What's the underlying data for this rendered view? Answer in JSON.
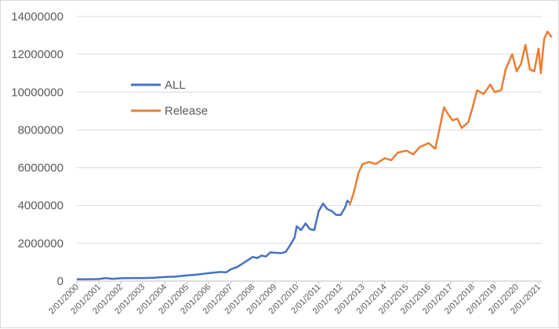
{
  "chart_data": {
    "type": "line",
    "title": "",
    "xlabel": "",
    "ylabel": "",
    "ylim": [
      0,
      14000000
    ],
    "yticks": [
      0,
      2000000,
      4000000,
      6000000,
      8000000,
      10000000,
      12000000,
      14000000
    ],
    "ytick_labels": [
      "0",
      "2000000",
      "4000000",
      "6000000",
      "8000000",
      "10000000",
      "12000000",
      "14000000"
    ],
    "xtick_labels": [
      "2/01/2000",
      "2/01/2001",
      "2/01/2002",
      "2/01/2003",
      "2/01/2004",
      "2/01/2005",
      "2/01/2006",
      "2/01/2007",
      "2/01/2008",
      "2/01/2009",
      "2/01/2010",
      "2/01/2011",
      "2/01/2012",
      "2/01/2013",
      "2/01/2014",
      "2/01/2015",
      "2/01/2016",
      "2/01/2017",
      "2/01/2018",
      "2/01/2019",
      "2/01/2020",
      "2/01/2021"
    ],
    "grid": {
      "horizontal": true,
      "vertical": false
    },
    "legend_position": "inside-left",
    "series": [
      {
        "name": "ALL",
        "color": "#4472c4",
        "x": [
          2000.0,
          2000.5,
          2001.0,
          2001.3,
          2001.6,
          2002.0,
          2002.5,
          2003.0,
          2003.5,
          2004.0,
          2004.5,
          2005.0,
          2005.5,
          2006.0,
          2006.5,
          2006.8,
          2007.0,
          2007.3,
          2007.5,
          2007.7,
          2008.0,
          2008.2,
          2008.4,
          2008.6,
          2008.8,
          2009.0,
          2009.3,
          2009.5,
          2009.7,
          2009.9,
          2010.0,
          2010.2,
          2010.4,
          2010.6,
          2010.8,
          2011.0,
          2011.2,
          2011.4,
          2011.6,
          2011.8,
          2012.0,
          2012.2,
          2012.3,
          2012.4
        ],
        "values": [
          100000,
          100000,
          110000,
          160000,
          120000,
          150000,
          160000,
          160000,
          180000,
          220000,
          240000,
          300000,
          350000,
          420000,
          480000,
          470000,
          620000,
          750000,
          900000,
          1050000,
          1280000,
          1220000,
          1350000,
          1300000,
          1520000,
          1500000,
          1480000,
          1550000,
          1900000,
          2300000,
          2900000,
          2700000,
          3050000,
          2750000,
          2700000,
          3700000,
          4100000,
          3800000,
          3700000,
          3500000,
          3500000,
          3900000,
          4250000,
          4150000
        ]
      },
      {
        "name": "Release",
        "color": "#ed7d31",
        "x": [
          2012.4,
          2012.6,
          2012.8,
          2013.0,
          2013.3,
          2013.6,
          2014.0,
          2014.3,
          2014.6,
          2015.0,
          2015.3,
          2015.6,
          2016.0,
          2016.3,
          2016.5,
          2016.7,
          2016.9,
          2017.1,
          2017.3,
          2017.5,
          2017.8,
          2018.0,
          2018.2,
          2018.5,
          2018.8,
          2019.0,
          2019.3,
          2019.5,
          2019.8,
          2020.0,
          2020.2,
          2020.4,
          2020.6,
          2020.8,
          2021.0,
          2021.1,
          2021.25,
          2021.4,
          2021.6
        ],
        "values": [
          4000000,
          4700000,
          5700000,
          6200000,
          6300000,
          6200000,
          6500000,
          6400000,
          6800000,
          6900000,
          6700000,
          7100000,
          7300000,
          7000000,
          8100000,
          9200000,
          8800000,
          8500000,
          8600000,
          8100000,
          8400000,
          9200000,
          10100000,
          9900000,
          10400000,
          10000000,
          10100000,
          11200000,
          12000000,
          11100000,
          11500000,
          12500000,
          11200000,
          11100000,
          12300000,
          11000000,
          12800000,
          13200000,
          12900000
        ]
      }
    ]
  },
  "legend": {
    "items": [
      {
        "label": "ALL",
        "color": "#4472c4"
      },
      {
        "label": "Release",
        "color": "#ed7d31"
      }
    ]
  },
  "colors": {
    "gridline": "#d9d9d9",
    "axis": "#d9d9d9",
    "text": "#595959"
  }
}
